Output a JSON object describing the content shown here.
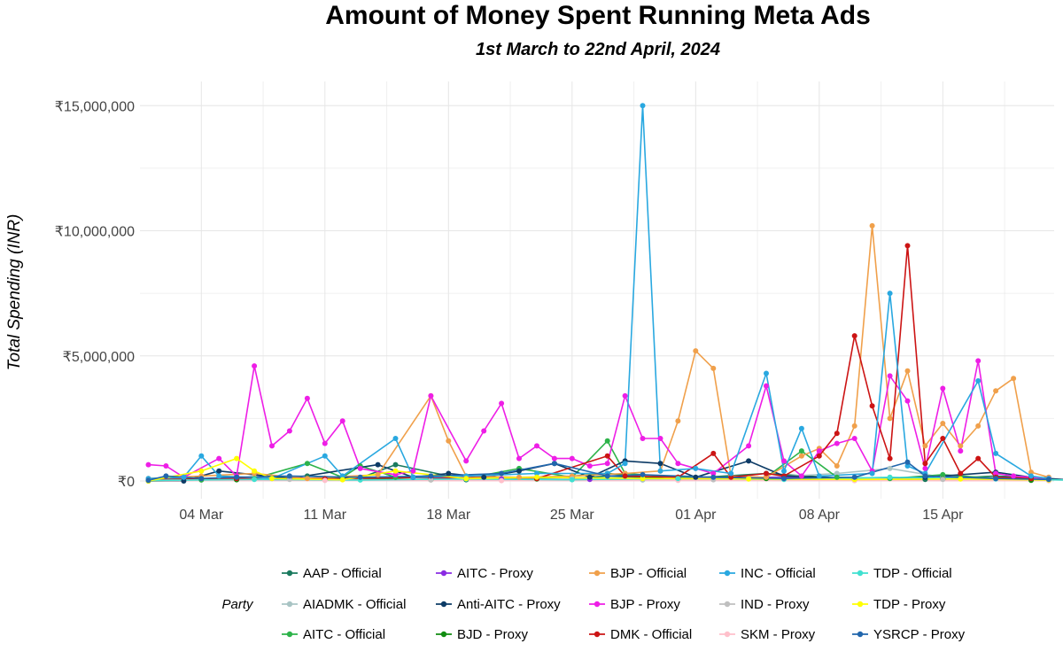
{
  "chart_data": {
    "type": "line",
    "title": "Amount of Money Spent Running Meta Ads",
    "subtitle": "1st March to 22nd April, 2024",
    "xlabel": "",
    "ylabel": "Total Spending (INR)",
    "x_start": "2024-03-01",
    "x_end": "2024-04-22",
    "xlim_days": [
      0,
      52
    ],
    "ylim": [
      -700000,
      15500000
    ],
    "grid": true,
    "legend_position": "bottom",
    "legend_title": "Party",
    "x_ticks": [
      {
        "day": 3,
        "label": "04 Mar"
      },
      {
        "day": 10,
        "label": "11 Mar"
      },
      {
        "day": 17,
        "label": "18 Mar"
      },
      {
        "day": 24,
        "label": "25 Mar"
      },
      {
        "day": 31,
        "label": "01 Apr"
      },
      {
        "day": 38,
        "label": "08 Apr"
      },
      {
        "day": 45,
        "label": "15 Apr"
      }
    ],
    "y_ticks": [
      {
        "value": 0,
        "label": "₹0"
      },
      {
        "value": 5000000,
        "label": "₹5,000,000"
      },
      {
        "value": 10000000,
        "label": "₹10,000,000"
      },
      {
        "value": 15000000,
        "label": "₹15,000,000"
      }
    ],
    "series": [
      {
        "name": "AAP - Official",
        "color": "#1a7a5e",
        "points": [
          [
            0,
            60000
          ],
          [
            3,
            90000
          ],
          [
            5,
            60000
          ],
          [
            9,
            200000
          ],
          [
            12,
            120000
          ],
          [
            14,
            650000
          ],
          [
            18,
            50000
          ],
          [
            24,
            100000
          ],
          [
            26,
            200000
          ],
          [
            30,
            80000
          ],
          [
            35,
            300000
          ],
          [
            40,
            80000
          ],
          [
            44,
            60000
          ],
          [
            48,
            200000
          ],
          [
            51,
            120000
          ]
        ]
      },
      {
        "name": "AIADMK - Official",
        "color": "#a9c4c4",
        "points": [
          [
            0,
            20000
          ],
          [
            6,
            80000
          ],
          [
            12,
            50000
          ],
          [
            20,
            60000
          ],
          [
            28,
            40000
          ],
          [
            34,
            100000
          ],
          [
            39,
            300000
          ],
          [
            42,
            500000
          ],
          [
            45,
            150000
          ],
          [
            50,
            60000
          ],
          [
            52,
            30000
          ]
        ]
      },
      {
        "name": "AITC - Official",
        "color": "#2db34a",
        "points": [
          [
            0,
            50000
          ],
          [
            3,
            40000
          ],
          [
            6,
            100000
          ],
          [
            9,
            700000
          ],
          [
            11,
            150000
          ],
          [
            12,
            600000
          ],
          [
            14,
            150000
          ],
          [
            18,
            100000
          ],
          [
            21,
            500000
          ],
          [
            24,
            150000
          ],
          [
            26,
            1600000
          ],
          [
            27,
            300000
          ],
          [
            30,
            150000
          ],
          [
            35,
            150000
          ],
          [
            37,
            1200000
          ],
          [
            39,
            150000
          ],
          [
            42,
            100000
          ],
          [
            45,
            250000
          ],
          [
            48,
            100000
          ],
          [
            51,
            60000
          ]
        ]
      },
      {
        "name": "AITC - Proxy",
        "color": "#8a2be2",
        "points": [
          [
            0,
            30000
          ],
          [
            5,
            100000
          ],
          [
            10,
            60000
          ],
          [
            15,
            150000
          ],
          [
            20,
            80000
          ],
          [
            25,
            60000
          ],
          [
            30,
            100000
          ],
          [
            35,
            150000
          ],
          [
            40,
            100000
          ],
          [
            45,
            80000
          ],
          [
            50,
            40000
          ]
        ]
      },
      {
        "name": "Anti-AITC - Proxy",
        "color": "#0d3b66",
        "points": [
          [
            0,
            0
          ],
          [
            2,
            0
          ],
          [
            4,
            400000
          ],
          [
            8,
            100000
          ],
          [
            13,
            650000
          ],
          [
            15,
            150000
          ],
          [
            17,
            300000
          ],
          [
            19,
            150000
          ],
          [
            21,
            400000
          ],
          [
            23,
            700000
          ],
          [
            25,
            150000
          ],
          [
            27,
            800000
          ],
          [
            29,
            700000
          ],
          [
            31,
            150000
          ],
          [
            34,
            800000
          ],
          [
            36,
            200000
          ],
          [
            40,
            100000
          ],
          [
            44,
            150000
          ],
          [
            48,
            350000
          ],
          [
            50,
            150000
          ],
          [
            52,
            50000
          ]
        ]
      },
      {
        "name": "BJD - Proxy",
        "color": "#118c11",
        "points": [
          [
            0,
            0
          ],
          [
            5,
            50000
          ],
          [
            11,
            100000
          ],
          [
            16,
            50000
          ],
          [
            22,
            80000
          ],
          [
            26,
            300000
          ],
          [
            30,
            50000
          ],
          [
            35,
            100000
          ],
          [
            40,
            40000
          ],
          [
            45,
            80000
          ],
          [
            50,
            30000
          ]
        ]
      },
      {
        "name": "BJP - Official",
        "color": "#f0a04b",
        "points": [
          [
            0,
            100000
          ],
          [
            3,
            200000
          ],
          [
            6,
            300000
          ],
          [
            9,
            100000
          ],
          [
            13,
            250000
          ],
          [
            16,
            3400000
          ],
          [
            17,
            1600000
          ],
          [
            18,
            200000
          ],
          [
            21,
            150000
          ],
          [
            24,
            200000
          ],
          [
            27,
            300000
          ],
          [
            29,
            400000
          ],
          [
            30,
            2400000
          ],
          [
            31,
            5200000
          ],
          [
            32,
            4500000
          ],
          [
            33,
            200000
          ],
          [
            35,
            150000
          ],
          [
            37,
            1000000
          ],
          [
            38,
            1300000
          ],
          [
            39,
            600000
          ],
          [
            40,
            2200000
          ],
          [
            41,
            10200000
          ],
          [
            42,
            2500000
          ],
          [
            43,
            4400000
          ],
          [
            44,
            1400000
          ],
          [
            45,
            2300000
          ],
          [
            46,
            1400000
          ],
          [
            47,
            2200000
          ],
          [
            48,
            3600000
          ],
          [
            49,
            4100000
          ],
          [
            50,
            350000
          ],
          [
            51,
            150000
          ]
        ]
      },
      {
        "name": "BJP - Proxy",
        "color": "#ee1ee6",
        "points": [
          [
            0,
            650000
          ],
          [
            1,
            600000
          ],
          [
            2,
            150000
          ],
          [
            4,
            900000
          ],
          [
            5,
            200000
          ],
          [
            6,
            4600000
          ],
          [
            7,
            1400000
          ],
          [
            8,
            2000000
          ],
          [
            9,
            3300000
          ],
          [
            10,
            1500000
          ],
          [
            11,
            2400000
          ],
          [
            12,
            500000
          ],
          [
            14,
            250000
          ],
          [
            15,
            400000
          ],
          [
            16,
            3400000
          ],
          [
            18,
            800000
          ],
          [
            19,
            2000000
          ],
          [
            20,
            3100000
          ],
          [
            21,
            900000
          ],
          [
            22,
            1400000
          ],
          [
            23,
            900000
          ],
          [
            24,
            900000
          ],
          [
            25,
            600000
          ],
          [
            26,
            700000
          ],
          [
            27,
            3400000
          ],
          [
            28,
            1700000
          ],
          [
            29,
            1700000
          ],
          [
            30,
            700000
          ],
          [
            32,
            300000
          ],
          [
            34,
            1400000
          ],
          [
            35,
            3800000
          ],
          [
            36,
            800000
          ],
          [
            37,
            200000
          ],
          [
            38,
            1200000
          ],
          [
            39,
            1500000
          ],
          [
            40,
            1700000
          ],
          [
            41,
            400000
          ],
          [
            42,
            4200000
          ],
          [
            43,
            3200000
          ],
          [
            44,
            500000
          ],
          [
            45,
            3700000
          ],
          [
            46,
            1200000
          ],
          [
            47,
            4800000
          ],
          [
            48,
            300000
          ],
          [
            49,
            200000
          ],
          [
            51,
            100000
          ]
        ]
      },
      {
        "name": "DMK - Official",
        "color": "#cc1414",
        "points": [
          [
            0,
            50000
          ],
          [
            5,
            100000
          ],
          [
            10,
            80000
          ],
          [
            16,
            150000
          ],
          [
            22,
            100000
          ],
          [
            26,
            1000000
          ],
          [
            27,
            200000
          ],
          [
            30,
            150000
          ],
          [
            32,
            1100000
          ],
          [
            33,
            150000
          ],
          [
            35,
            300000
          ],
          [
            36,
            200000
          ],
          [
            38,
            1000000
          ],
          [
            39,
            1900000
          ],
          [
            40,
            5800000
          ],
          [
            41,
            3000000
          ],
          [
            42,
            900000
          ],
          [
            43,
            9400000
          ],
          [
            44,
            700000
          ],
          [
            45,
            1700000
          ],
          [
            46,
            300000
          ],
          [
            47,
            900000
          ],
          [
            48,
            150000
          ],
          [
            50,
            100000
          ]
        ]
      },
      {
        "name": "INC - Official",
        "color": "#29a8e0",
        "points": [
          [
            0,
            100000
          ],
          [
            2,
            150000
          ],
          [
            3,
            1000000
          ],
          [
            4,
            200000
          ],
          [
            7,
            100000
          ],
          [
            10,
            1000000
          ],
          [
            11,
            200000
          ],
          [
            14,
            1700000
          ],
          [
            15,
            150000
          ],
          [
            18,
            200000
          ],
          [
            22,
            300000
          ],
          [
            26,
            300000
          ],
          [
            27,
            700000
          ],
          [
            28,
            15000000
          ],
          [
            29,
            400000
          ],
          [
            31,
            500000
          ],
          [
            33,
            300000
          ],
          [
            35,
            4300000
          ],
          [
            36,
            400000
          ],
          [
            37,
            2100000
          ],
          [
            38,
            200000
          ],
          [
            41,
            300000
          ],
          [
            42,
            7500000
          ],
          [
            43,
            600000
          ],
          [
            44,
            300000
          ],
          [
            47,
            4000000
          ],
          [
            48,
            1100000
          ],
          [
            50,
            200000
          ],
          [
            51,
            100000
          ]
        ]
      },
      {
        "name": "IND - Proxy",
        "color": "#bfbfbf",
        "points": [
          [
            0,
            30000
          ],
          [
            8,
            60000
          ],
          [
            16,
            40000
          ],
          [
            24,
            80000
          ],
          [
            32,
            50000
          ],
          [
            40,
            100000
          ],
          [
            45,
            60000
          ],
          [
            51,
            20000
          ]
        ]
      },
      {
        "name": "SKM - Proxy",
        "color": "#ffc0cb",
        "points": [
          [
            0,
            10000
          ],
          [
            10,
            20000
          ],
          [
            20,
            15000
          ],
          [
            30,
            20000
          ],
          [
            40,
            15000
          ],
          [
            51,
            10000
          ]
        ]
      },
      {
        "name": "TDP - Official",
        "color": "#40e0d0",
        "points": [
          [
            0,
            20000
          ],
          [
            6,
            60000
          ],
          [
            12,
            40000
          ],
          [
            18,
            80000
          ],
          [
            24,
            50000
          ],
          [
            30,
            100000
          ],
          [
            36,
            60000
          ],
          [
            42,
            150000
          ],
          [
            48,
            80000
          ],
          [
            52,
            40000
          ]
        ]
      },
      {
        "name": "TDP - Proxy",
        "color": "#ffff00",
        "points": [
          [
            0,
            0
          ],
          [
            3,
            400000
          ],
          [
            5,
            900000
          ],
          [
            6,
            400000
          ],
          [
            7,
            100000
          ],
          [
            11,
            50000
          ],
          [
            14,
            400000
          ],
          [
            18,
            100000
          ],
          [
            22,
            150000
          ],
          [
            28,
            100000
          ],
          [
            34,
            80000
          ],
          [
            40,
            60000
          ],
          [
            46,
            80000
          ],
          [
            51,
            40000
          ]
        ]
      },
      {
        "name": "YSRCP - Proxy",
        "color": "#2166ac",
        "points": [
          [
            0,
            30000
          ],
          [
            1,
            200000
          ],
          [
            3,
            100000
          ],
          [
            5,
            150000
          ],
          [
            8,
            200000
          ],
          [
            12,
            150000
          ],
          [
            16,
            200000
          ],
          [
            20,
            300000
          ],
          [
            23,
            700000
          ],
          [
            26,
            200000
          ],
          [
            28,
            250000
          ],
          [
            32,
            150000
          ],
          [
            36,
            100000
          ],
          [
            40,
            150000
          ],
          [
            43,
            750000
          ],
          [
            44,
            200000
          ],
          [
            48,
            100000
          ],
          [
            51,
            60000
          ]
        ]
      }
    ]
  }
}
